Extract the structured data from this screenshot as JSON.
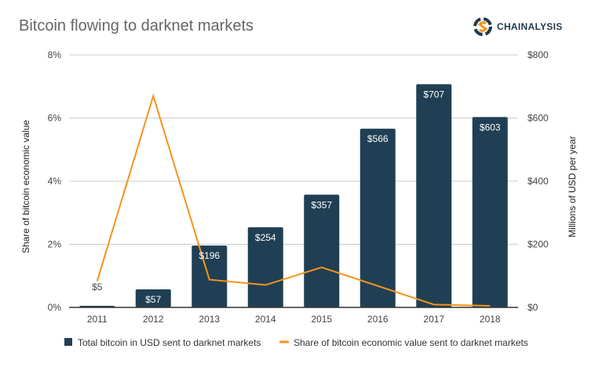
{
  "title": "Bitcoin flowing to darknet markets",
  "logo_text": "CHAINALYSIS",
  "chart_data": {
    "type": "bar+line",
    "categories": [
      "2011",
      "2012",
      "2013",
      "2014",
      "2015",
      "2016",
      "2017",
      "2018"
    ],
    "series": [
      {
        "name": "Total bitcoin in USD sent to darknet markets",
        "type": "bar",
        "axis": "right",
        "values": [
          5,
          57,
          196,
          254,
          357,
          566,
          707,
          603
        ],
        "labels": [
          "$5",
          "$57",
          "$196",
          "$254",
          "$357",
          "$566",
          "$707",
          "$603"
        ],
        "color": "#203f54"
      },
      {
        "name": "Share of bitcoin economic value sent to darknet markets",
        "type": "line",
        "axis": "left",
        "values": [
          0.83,
          6.7,
          0.88,
          0.71,
          1.27,
          0.68,
          0.09,
          0.05
        ],
        "color": "#f7931a"
      }
    ],
    "ylabel_left": "Share of bitcoin economic value",
    "ylabel_right": "Millions of USD per year",
    "ylim_left": [
      0,
      8
    ],
    "ylim_right": [
      0,
      800
    ],
    "left_ticks": [
      "0%",
      "2%",
      "4%",
      "6%",
      "8%"
    ],
    "right_ticks": [
      "$0",
      "$200",
      "$400",
      "$600",
      "$800"
    ],
    "grid": true,
    "legend": "bottom"
  }
}
